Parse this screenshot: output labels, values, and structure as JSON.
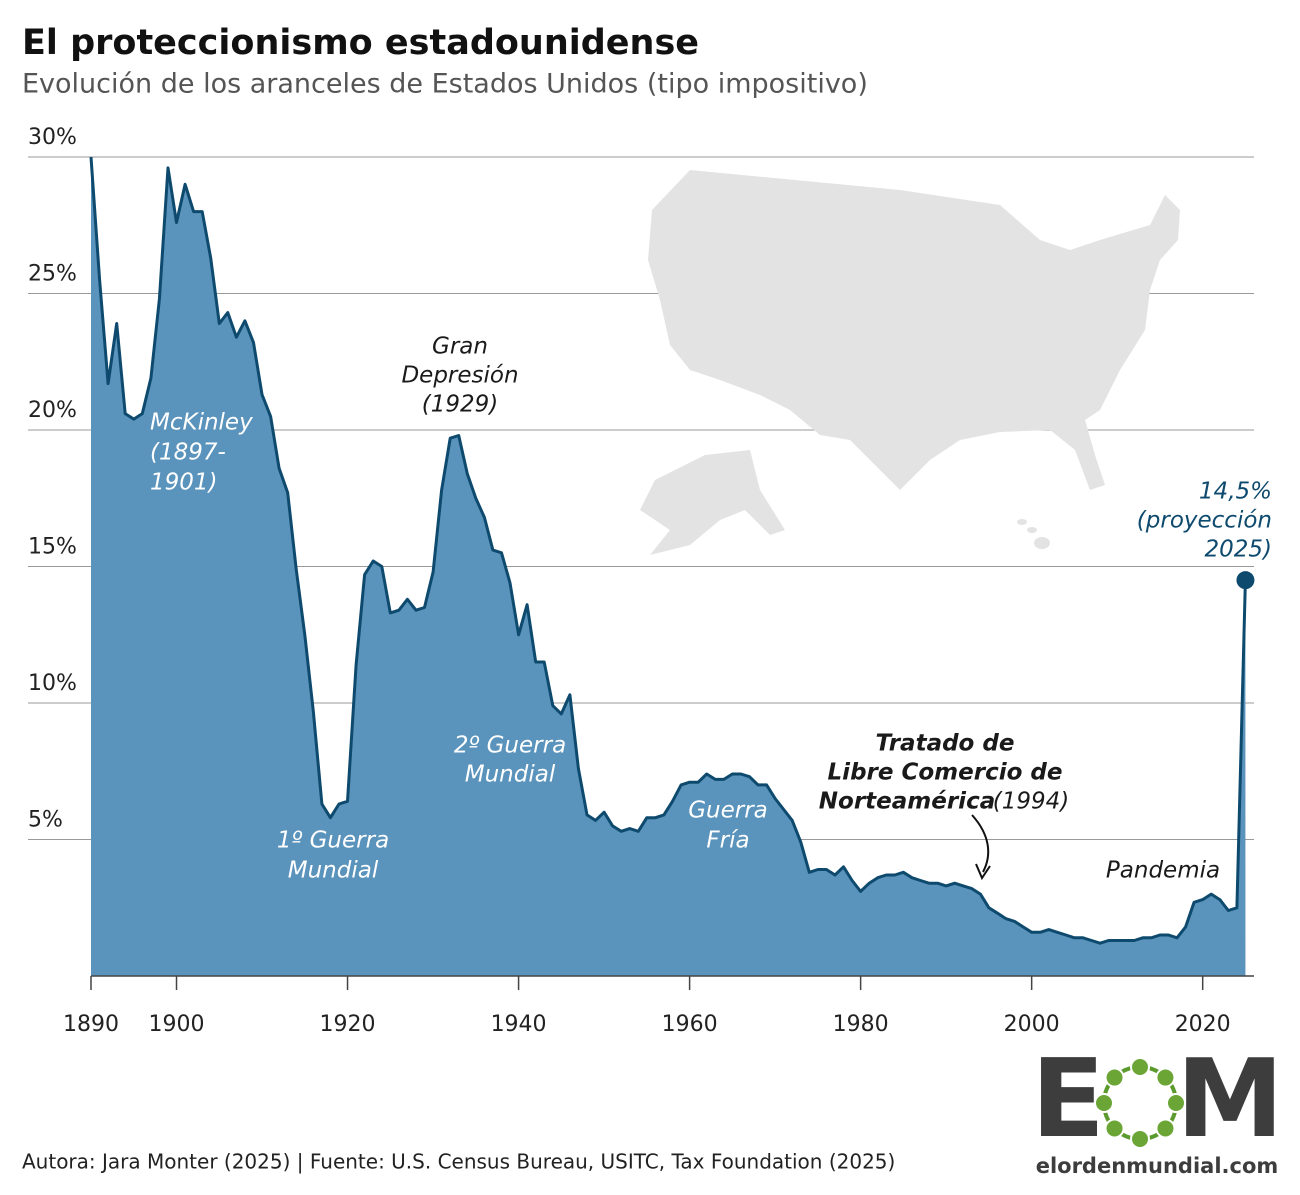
{
  "chart_data": {
    "type": "area",
    "title": "El proteccionismo estadounidense",
    "subtitle": "Evolución de los aranceles de Estados Unidos (tipo impositivo)",
    "x": [
      1890,
      1891,
      1892,
      1893,
      1894,
      1895,
      1896,
      1897,
      1898,
      1899,
      1900,
      1901,
      1902,
      1903,
      1904,
      1905,
      1906,
      1907,
      1908,
      1909,
      1910,
      1911,
      1912,
      1913,
      1914,
      1915,
      1916,
      1917,
      1918,
      1919,
      1920,
      1921,
      1922,
      1923,
      1924,
      1925,
      1926,
      1927,
      1928,
      1929,
      1930,
      1931,
      1932,
      1933,
      1934,
      1935,
      1936,
      1937,
      1938,
      1939,
      1940,
      1941,
      1942,
      1943,
      1944,
      1945,
      1946,
      1947,
      1948,
      1949,
      1950,
      1951,
      1952,
      1953,
      1954,
      1955,
      1956,
      1957,
      1958,
      1959,
      1960,
      1961,
      1962,
      1963,
      1964,
      1965,
      1966,
      1967,
      1968,
      1969,
      1970,
      1971,
      1972,
      1973,
      1974,
      1975,
      1976,
      1977,
      1978,
      1979,
      1980,
      1981,
      1982,
      1983,
      1984,
      1985,
      1986,
      1987,
      1988,
      1989,
      1990,
      1991,
      1992,
      1993,
      1994,
      1995,
      1996,
      1997,
      1998,
      1999,
      2000,
      2001,
      2002,
      2003,
      2004,
      2005,
      2006,
      2007,
      2008,
      2009,
      2010,
      2011,
      2012,
      2013,
      2014,
      2015,
      2016,
      2017,
      2018,
      2019,
      2020,
      2021,
      2022,
      2023,
      2024,
      2025
    ],
    "series": [
      {
        "color": "#5a93bb",
        "line_color": "#0e4a6e",
        "values": [
          30,
          25.5,
          21.7,
          23.9,
          20.6,
          20.4,
          20.6,
          21.9,
          24.8,
          29.6,
          27.6,
          29.0,
          28.0,
          28.0,
          26.3,
          23.9,
          24.3,
          23.4,
          24.0,
          23.2,
          21.3,
          20.5,
          18.6,
          17.7,
          14.9,
          12.5,
          9.7,
          6.3,
          5.8,
          6.3,
          6.4,
          11.4,
          14.7,
          15.2,
          15.0,
          13.3,
          13.4,
          13.8,
          13.4,
          13.5,
          14.8,
          17.8,
          19.7,
          19.8,
          18.4,
          17.5,
          16.8,
          15.6,
          15.5,
          14.4,
          12.5,
          13.6,
          11.5,
          11.5,
          9.9,
          9.6,
          10.3,
          7.6,
          5.9,
          5.7,
          6.0,
          5.5,
          5.3,
          5.4,
          5.3,
          5.8,
          5.8,
          5.9,
          6.4,
          7.0,
          7.1,
          7.1,
          7.4,
          7.2,
          7.2,
          7.4,
          7.4,
          7.3,
          7.0,
          7.0,
          6.5,
          6.1,
          5.7,
          4.9,
          3.8,
          3.9,
          3.9,
          3.7,
          4.0,
          3.5,
          3.1,
          3.4,
          3.6,
          3.7,
          3.7,
          3.8,
          3.6,
          3.5,
          3.4,
          3.4,
          3.3,
          3.4,
          3.3,
          3.2,
          3.0,
          2.5,
          2.3,
          2.1,
          2.0,
          1.8,
          1.6,
          1.6,
          1.7,
          1.6,
          1.5,
          1.4,
          1.4,
          1.3,
          1.2,
          1.3,
          1.3,
          1.3,
          1.3,
          1.4,
          1.4,
          1.5,
          1.5,
          1.4,
          1.8,
          2.7,
          2.8,
          3.0,
          2.8,
          2.4,
          2.5,
          14.5
        ]
      }
    ],
    "xlim": [
      1890,
      2026
    ],
    "xticks": [
      1890,
      1900,
      1920,
      1940,
      1960,
      1980,
      2000,
      2020
    ],
    "ylim": [
      0,
      30
    ],
    "yticks": [
      {
        "value": 5,
        "label": "5%"
      },
      {
        "value": 10,
        "label": "10%"
      },
      {
        "value": 15,
        "label": "15%"
      },
      {
        "value": 20,
        "label": "20%"
      },
      {
        "value": 25,
        "label": "25%"
      },
      {
        "value": 30,
        "label": "30%"
      }
    ],
    "grid": true,
    "annotations": {
      "mckinley": [
        "McKinley",
        "(1897-",
        "1901)"
      ],
      "ww1": [
        "1º Guerra",
        "Mundial"
      ],
      "depression": [
        "Gran",
        "Depresión",
        "(1929)"
      ],
      "ww2": [
        "2º Guerra",
        "Mundial"
      ],
      "coldwar": [
        "Guerra",
        "Fría"
      ],
      "nafta": [
        "Tratado de",
        "Libre Comercio de",
        "Norteamérica",
        "(1994)"
      ],
      "pandemic": [
        "Pandemia"
      ],
      "projection": [
        "14,5%",
        "(proyección",
        "2025)"
      ]
    },
    "source": "Autora: Jara Monter (2025) | Fuente: U.S. Census Bureau, USITC, Tax Foundation (2025)",
    "logo": {
      "letters": [
        "E",
        "M"
      ],
      "url": "elordenmundial.com"
    }
  }
}
